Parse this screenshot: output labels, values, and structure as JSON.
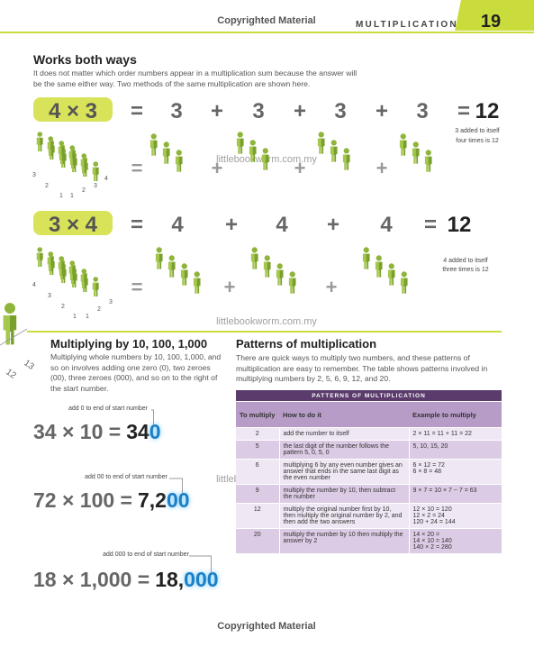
{
  "header": {
    "copyright": "Copyrighted Material",
    "section": "MULTIPLICATION",
    "page": "19"
  },
  "watermark": "littlebookworm.com.my",
  "works_both_ways": {
    "title": "Works both ways",
    "body": "It does not matter which order numbers appear in a multiplication sum because the answer will be the same either way. Two methods of the same multiplication are shown here.",
    "examples": [
      {
        "sum": "4 × 3",
        "terms": [
          "=",
          "3",
          "+",
          "3",
          "+",
          "3",
          "+",
          "3"
        ],
        "equals": "=",
        "total": "12",
        "figure_signs": [
          "=",
          "+",
          "+",
          "+"
        ],
        "note": [
          "3 added to itself",
          "four times is 12"
        ],
        "crowd_labels": [
          "3",
          "2",
          "1",
          "1",
          "2",
          "3",
          "4"
        ]
      },
      {
        "sum": "3 × 4",
        "terms": [
          "=",
          "4",
          "+",
          "4",
          "+",
          "4"
        ],
        "equals": "=",
        "total": "12",
        "figure_signs": [
          "=",
          "+",
          "+"
        ],
        "note": [
          "4 added to itself",
          "three times is 12"
        ],
        "crowd_labels": [
          "4",
          "3",
          "2",
          "1",
          "1",
          "2",
          "3"
        ]
      }
    ]
  },
  "side_labels": [
    "12",
    "13"
  ],
  "multiplying_by_10": {
    "title": "Multiplying by 10, 100, 1,000",
    "body": "Multiplying whole numbers by 10, 100, 1,000, and so on involves adding one zero (0), two zeroes (00), three zeroes (000), and so on to the right of the start number.",
    "examples": [
      {
        "note": "add 0 to end of start number",
        "sum": "34 × 10 =",
        "start": "34",
        "zeros": "0"
      },
      {
        "note": "add 00 to end of start number",
        "sum": "72 × 100 =",
        "start": "7,2",
        "zeros": "00"
      },
      {
        "note": "add 000 to end of start number",
        "sum": "18 × 1,000 =",
        "start": "18,",
        "zeros": "000"
      }
    ]
  },
  "patterns": {
    "title": "Patterns of multiplication",
    "body": "There are quick ways to multiply two numbers, and these patterns of multiplication are easy to remember. The table shows patterns involved in multiplying numbers by 2, 5, 6, 9, 12, and 20.",
    "table": {
      "title": "PATTERNS OF MULTIPLICATION",
      "headers": [
        "To multiply",
        "How to do it",
        "Example to multiply"
      ],
      "rows": [
        {
          "number": "2",
          "method": "add the number to itself",
          "example": [
            "2 × 11 = 11 + 11 = 22"
          ]
        },
        {
          "number": "5",
          "method": "the last digit of the number follows the pattern 5, 0, 5, 0",
          "example": [
            "5, 10, 15, 20"
          ]
        },
        {
          "number": "6",
          "method": "multiplying 6 by any even number gives an answer that ends in the same last digit as the even number",
          "example": [
            "6 × 12 = 72",
            "6 × 8 = 48"
          ]
        },
        {
          "number": "9",
          "method": "multiply the number by 10, then subtract the number",
          "example": [
            "9 × 7 = 10 × 7 − 7 = 63"
          ]
        },
        {
          "number": "12",
          "method": "multiply the original number first by 10, then multiply the original number by 2, and then add the two answers",
          "example": [
            "12 × 10 = 120",
            "12 × 2 = 24",
            "120 + 24 = 144"
          ]
        },
        {
          "number": "20",
          "method": "multiply the number by 10 then multiply the answer by 2",
          "example": [
            "14 × 20 =",
            "14 × 10 = 140",
            "140 × 2 = 280"
          ]
        }
      ]
    }
  },
  "footer": "Copyrighted Material"
}
